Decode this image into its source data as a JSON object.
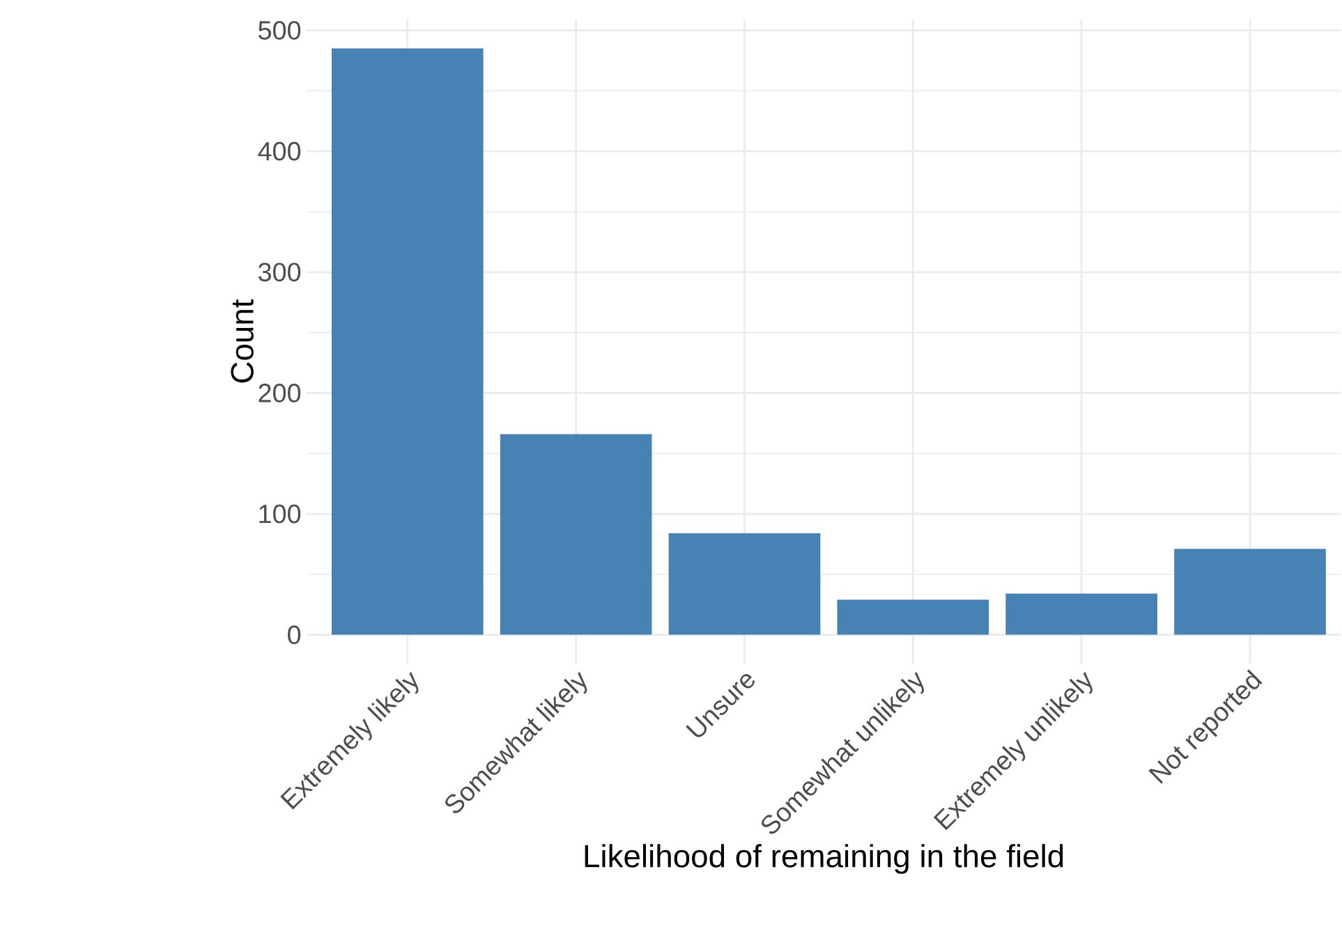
{
  "chart_data": {
    "type": "bar",
    "xlabel": "Likelihood of remaining in the field",
    "ylabel": "Count",
    "categories": [
      "Extremely likely",
      "Somewhat likely",
      "Unsure",
      "Somewhat unlikely",
      "Extremely unlikely",
      "Not reported"
    ],
    "values": [
      485,
      166,
      84,
      29,
      34,
      71
    ],
    "color": "#4682b4",
    "ylim": [
      -24,
      509
    ],
    "yticks": [
      0,
      100,
      200,
      300,
      400,
      500
    ],
    "grid": true
  }
}
